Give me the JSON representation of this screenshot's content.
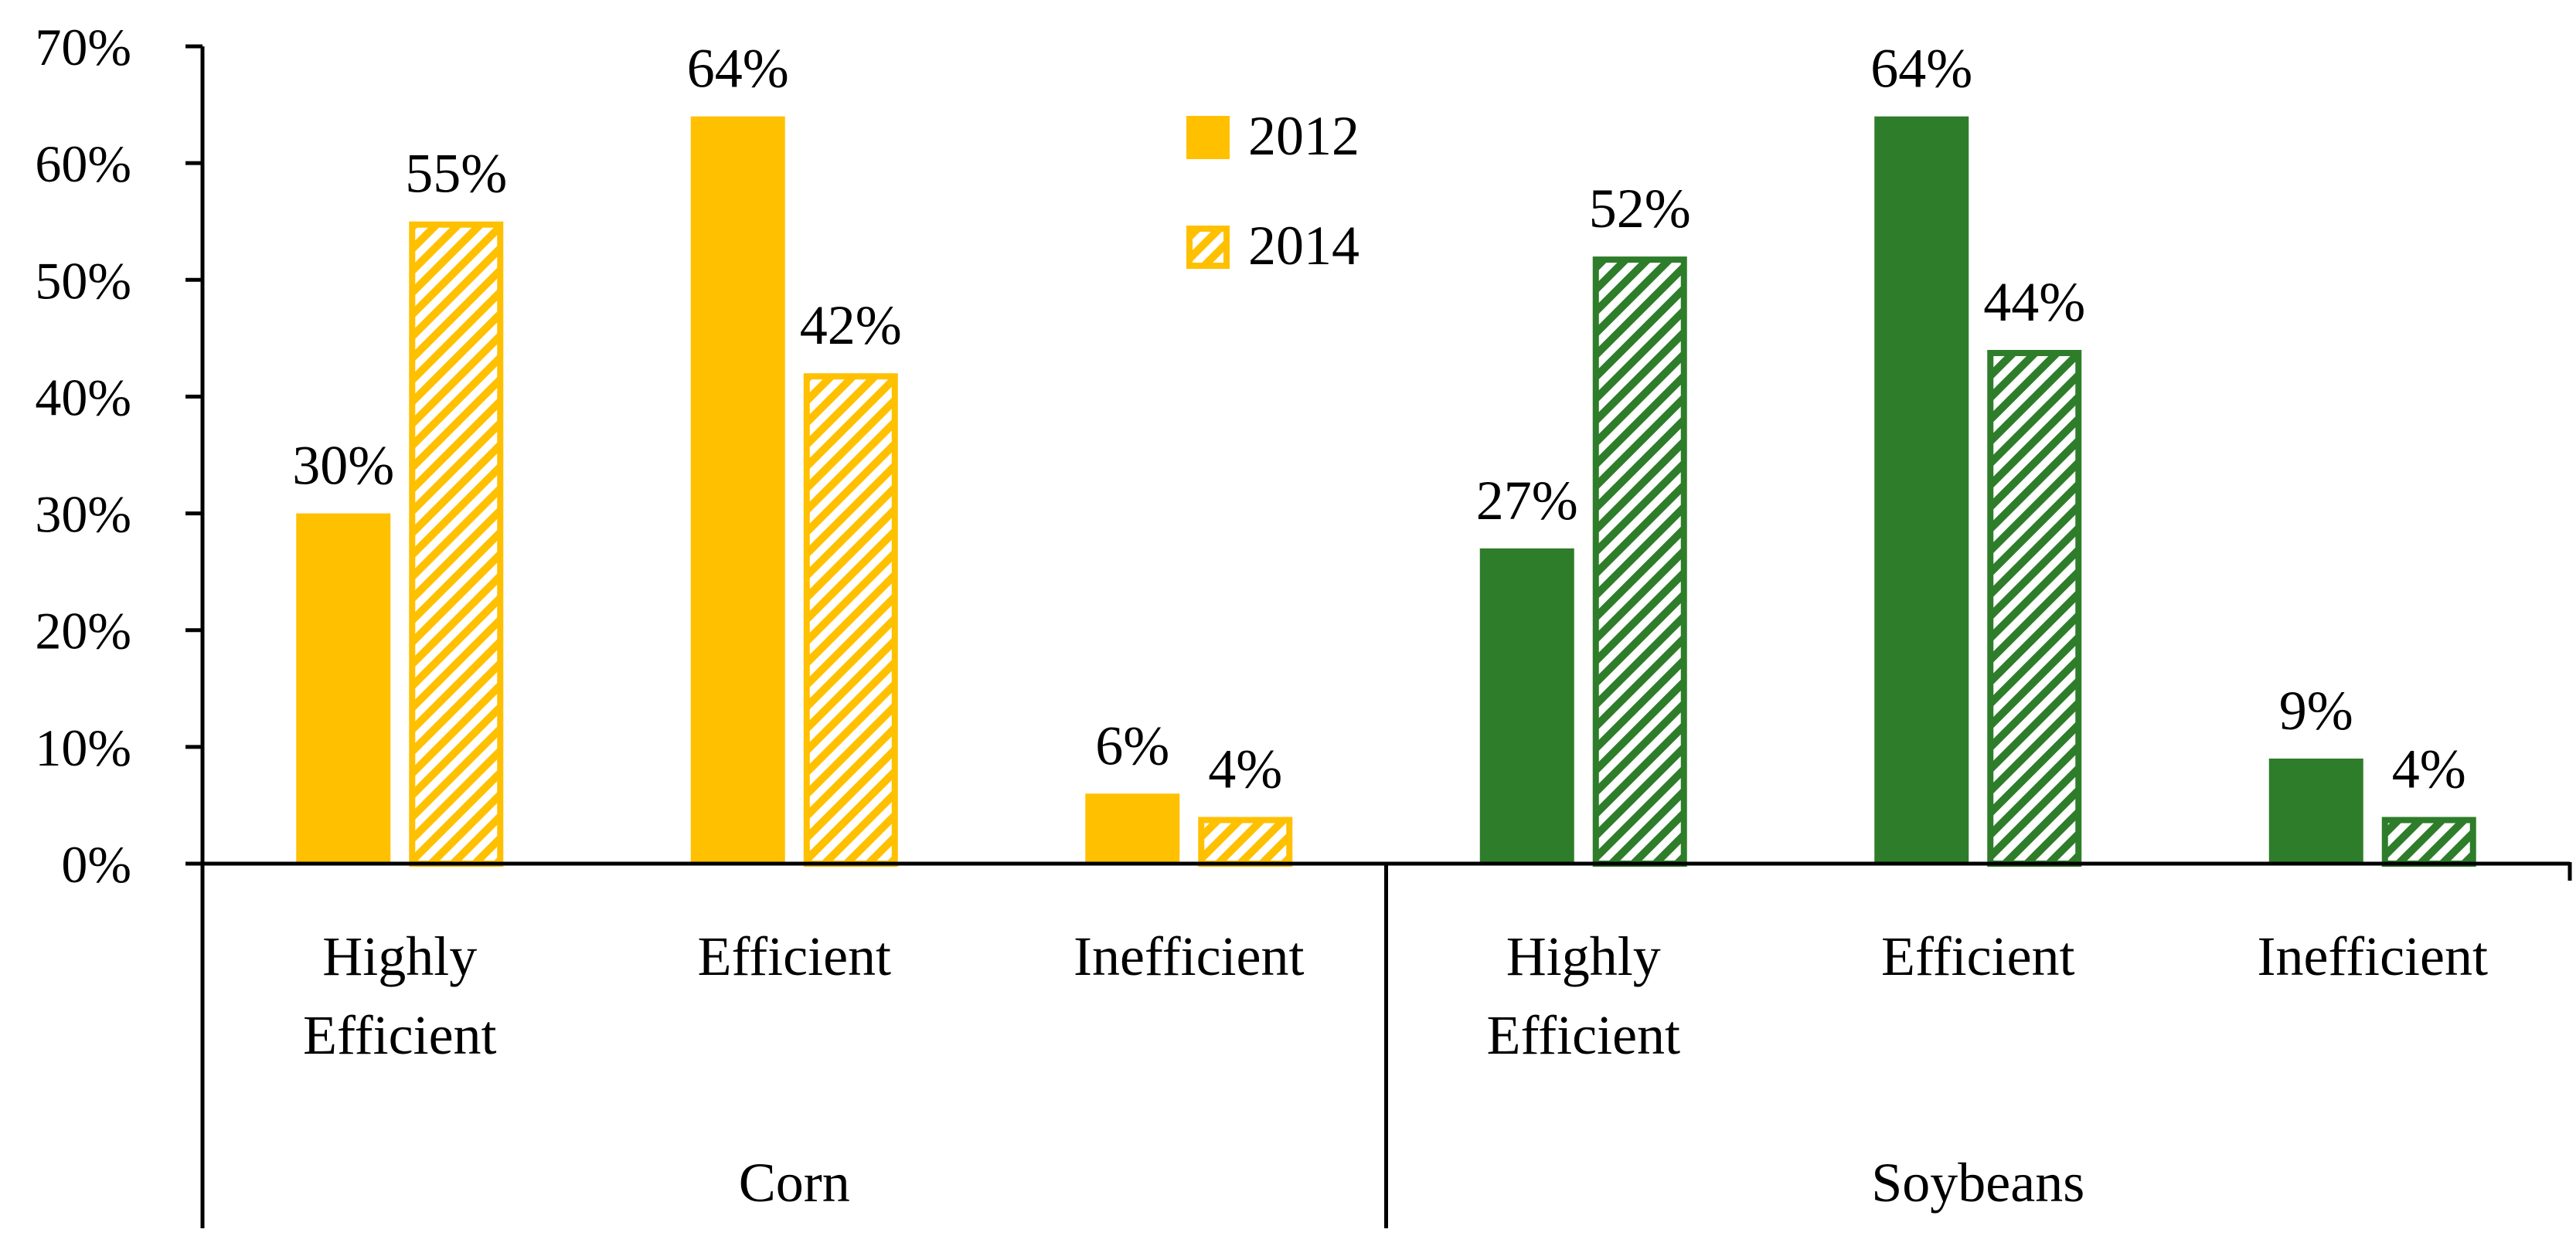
{
  "chart_data": {
    "type": "bar",
    "title": "",
    "xlabel": "",
    "ylabel": "",
    "ylim": [
      0,
      70
    ],
    "y_ticks": [
      "0%",
      "10%",
      "20%",
      "30%",
      "40%",
      "50%",
      "60%",
      "70%"
    ],
    "grid": false,
    "legend_position": "top-center",
    "groups": [
      {
        "name": "Corn",
        "color": "#FFC000",
        "categories": [
          {
            "label": [
              "Highly",
              "Efficient"
            ],
            "values": [
              30,
              55
            ],
            "labels": [
              "30%",
              "55%"
            ]
          },
          {
            "label": [
              "Efficient"
            ],
            "values": [
              64,
              42
            ],
            "labels": [
              "64%",
              "42%"
            ]
          },
          {
            "label": [
              "Inefficient"
            ],
            "values": [
              6,
              4
            ],
            "labels": [
              "6%",
              "4%"
            ]
          }
        ]
      },
      {
        "name": "Soybeans",
        "color": "#2E7D2A",
        "categories": [
          {
            "label": [
              "Highly",
              "Efficient"
            ],
            "values": [
              27,
              52
            ],
            "labels": [
              "27%",
              "52%"
            ]
          },
          {
            "label": [
              "Efficient"
            ],
            "values": [
              64,
              44
            ],
            "labels": [
              "64%",
              "44%"
            ]
          },
          {
            "label": [
              "Inefficient"
            ],
            "values": [
              9,
              4
            ],
            "labels": [
              "9%",
              "4%"
            ]
          }
        ]
      }
    ],
    "series": [
      {
        "name": "2012",
        "style": "solid"
      },
      {
        "name": "2014",
        "style": "hatched"
      }
    ]
  }
}
